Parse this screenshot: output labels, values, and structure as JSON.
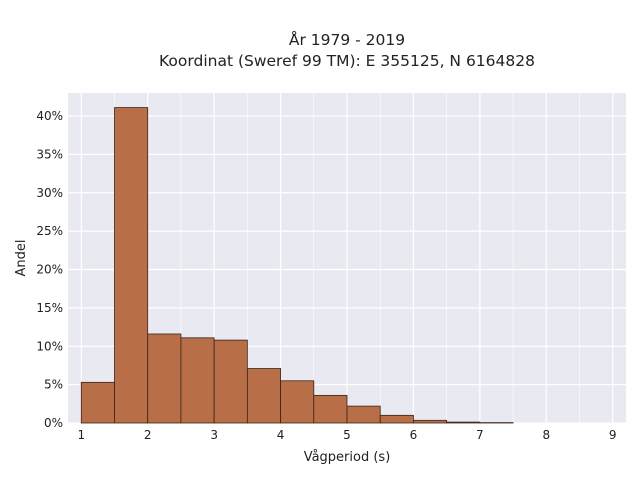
{
  "chart_data": {
    "type": "bar",
    "title_lines": [
      "År 1979 - 2019",
      "Koordinat (Sweref 99 TM): E 355125, N 6164828"
    ],
    "xlabel": "Vågperiod (s)",
    "ylabel": "Andel",
    "bin_edges": [
      1,
      1.5,
      2,
      2.5,
      3,
      3.5,
      4,
      4.5,
      5,
      5.5,
      6,
      6.5,
      7,
      7.5
    ],
    "values": [
      5.3,
      41.1,
      11.6,
      11.1,
      10.8,
      7.1,
      5.5,
      3.6,
      2.2,
      1.0,
      0.35,
      0.12,
      0.05
    ],
    "xlim": [
      0.8,
      9.2
    ],
    "ylim": [
      0,
      43
    ],
    "xticks": [
      1,
      2,
      3,
      4,
      5,
      6,
      7,
      8,
      9
    ],
    "xtick_labels": [
      "1",
      "2",
      "3",
      "4",
      "5",
      "6",
      "7",
      "8",
      "9"
    ],
    "yticks": [
      0,
      5,
      10,
      15,
      20,
      25,
      30,
      35,
      40
    ],
    "ytick_labels": [
      "0%",
      "5%",
      "10%",
      "15%",
      "20%",
      "25%",
      "30%",
      "35%",
      "40%"
    ],
    "grid": true,
    "colors": {
      "bar": "#b86f48",
      "edge": "#3a2418",
      "background": "#e9e9f1",
      "grid": "#ffffff"
    }
  }
}
